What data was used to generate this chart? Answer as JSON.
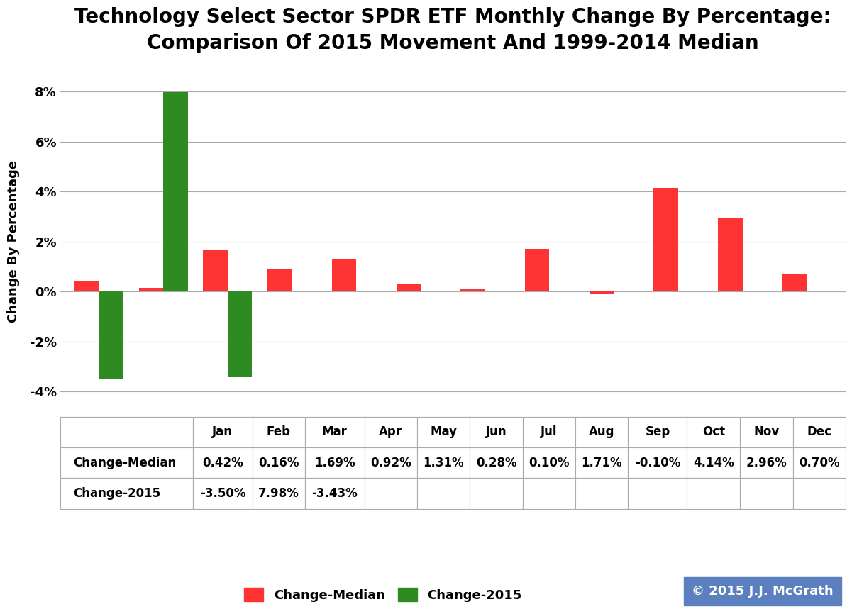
{
  "title": "Technology Select Sector SPDR ETF Monthly Change By Percentage:\nComparison Of 2015 Movement And 1999-2014 Median",
  "months": [
    "Jan",
    "Feb",
    "Mar",
    "Apr",
    "May",
    "Jun",
    "Jul",
    "Aug",
    "Sep",
    "Oct",
    "Nov",
    "Dec"
  ],
  "change_median": [
    0.42,
    0.16,
    1.69,
    0.92,
    1.31,
    0.28,
    0.1,
    1.71,
    -0.1,
    4.14,
    2.96,
    0.7
  ],
  "change_2015": [
    -3.5,
    7.98,
    -3.43,
    null,
    null,
    null,
    null,
    null,
    null,
    null,
    null,
    null
  ],
  "median_color": "#FF3333",
  "color_2015": "#2E8B22",
  "bar_width": 0.38,
  "ylim": [
    -5.0,
    9.0
  ],
  "yticks": [
    -4,
    -2,
    0,
    2,
    4,
    6,
    8
  ],
  "ytick_labels": [
    "-4%",
    "-2%",
    "0%",
    "2%",
    "4%",
    "6%",
    "8%"
  ],
  "ylabel": "Change By Percentage",
  "background_color": "#FFFFFF",
  "grid_color": "#AAAAAA",
  "title_fontsize": 20,
  "axis_fontsize": 13,
  "table_fontsize": 12,
  "legend_fontsize": 13,
  "copyright_text": "© 2015 J.J. McGrath",
  "copyright_bg": "#5B7FBF",
  "copyright_text_color": "#FFFFFF"
}
